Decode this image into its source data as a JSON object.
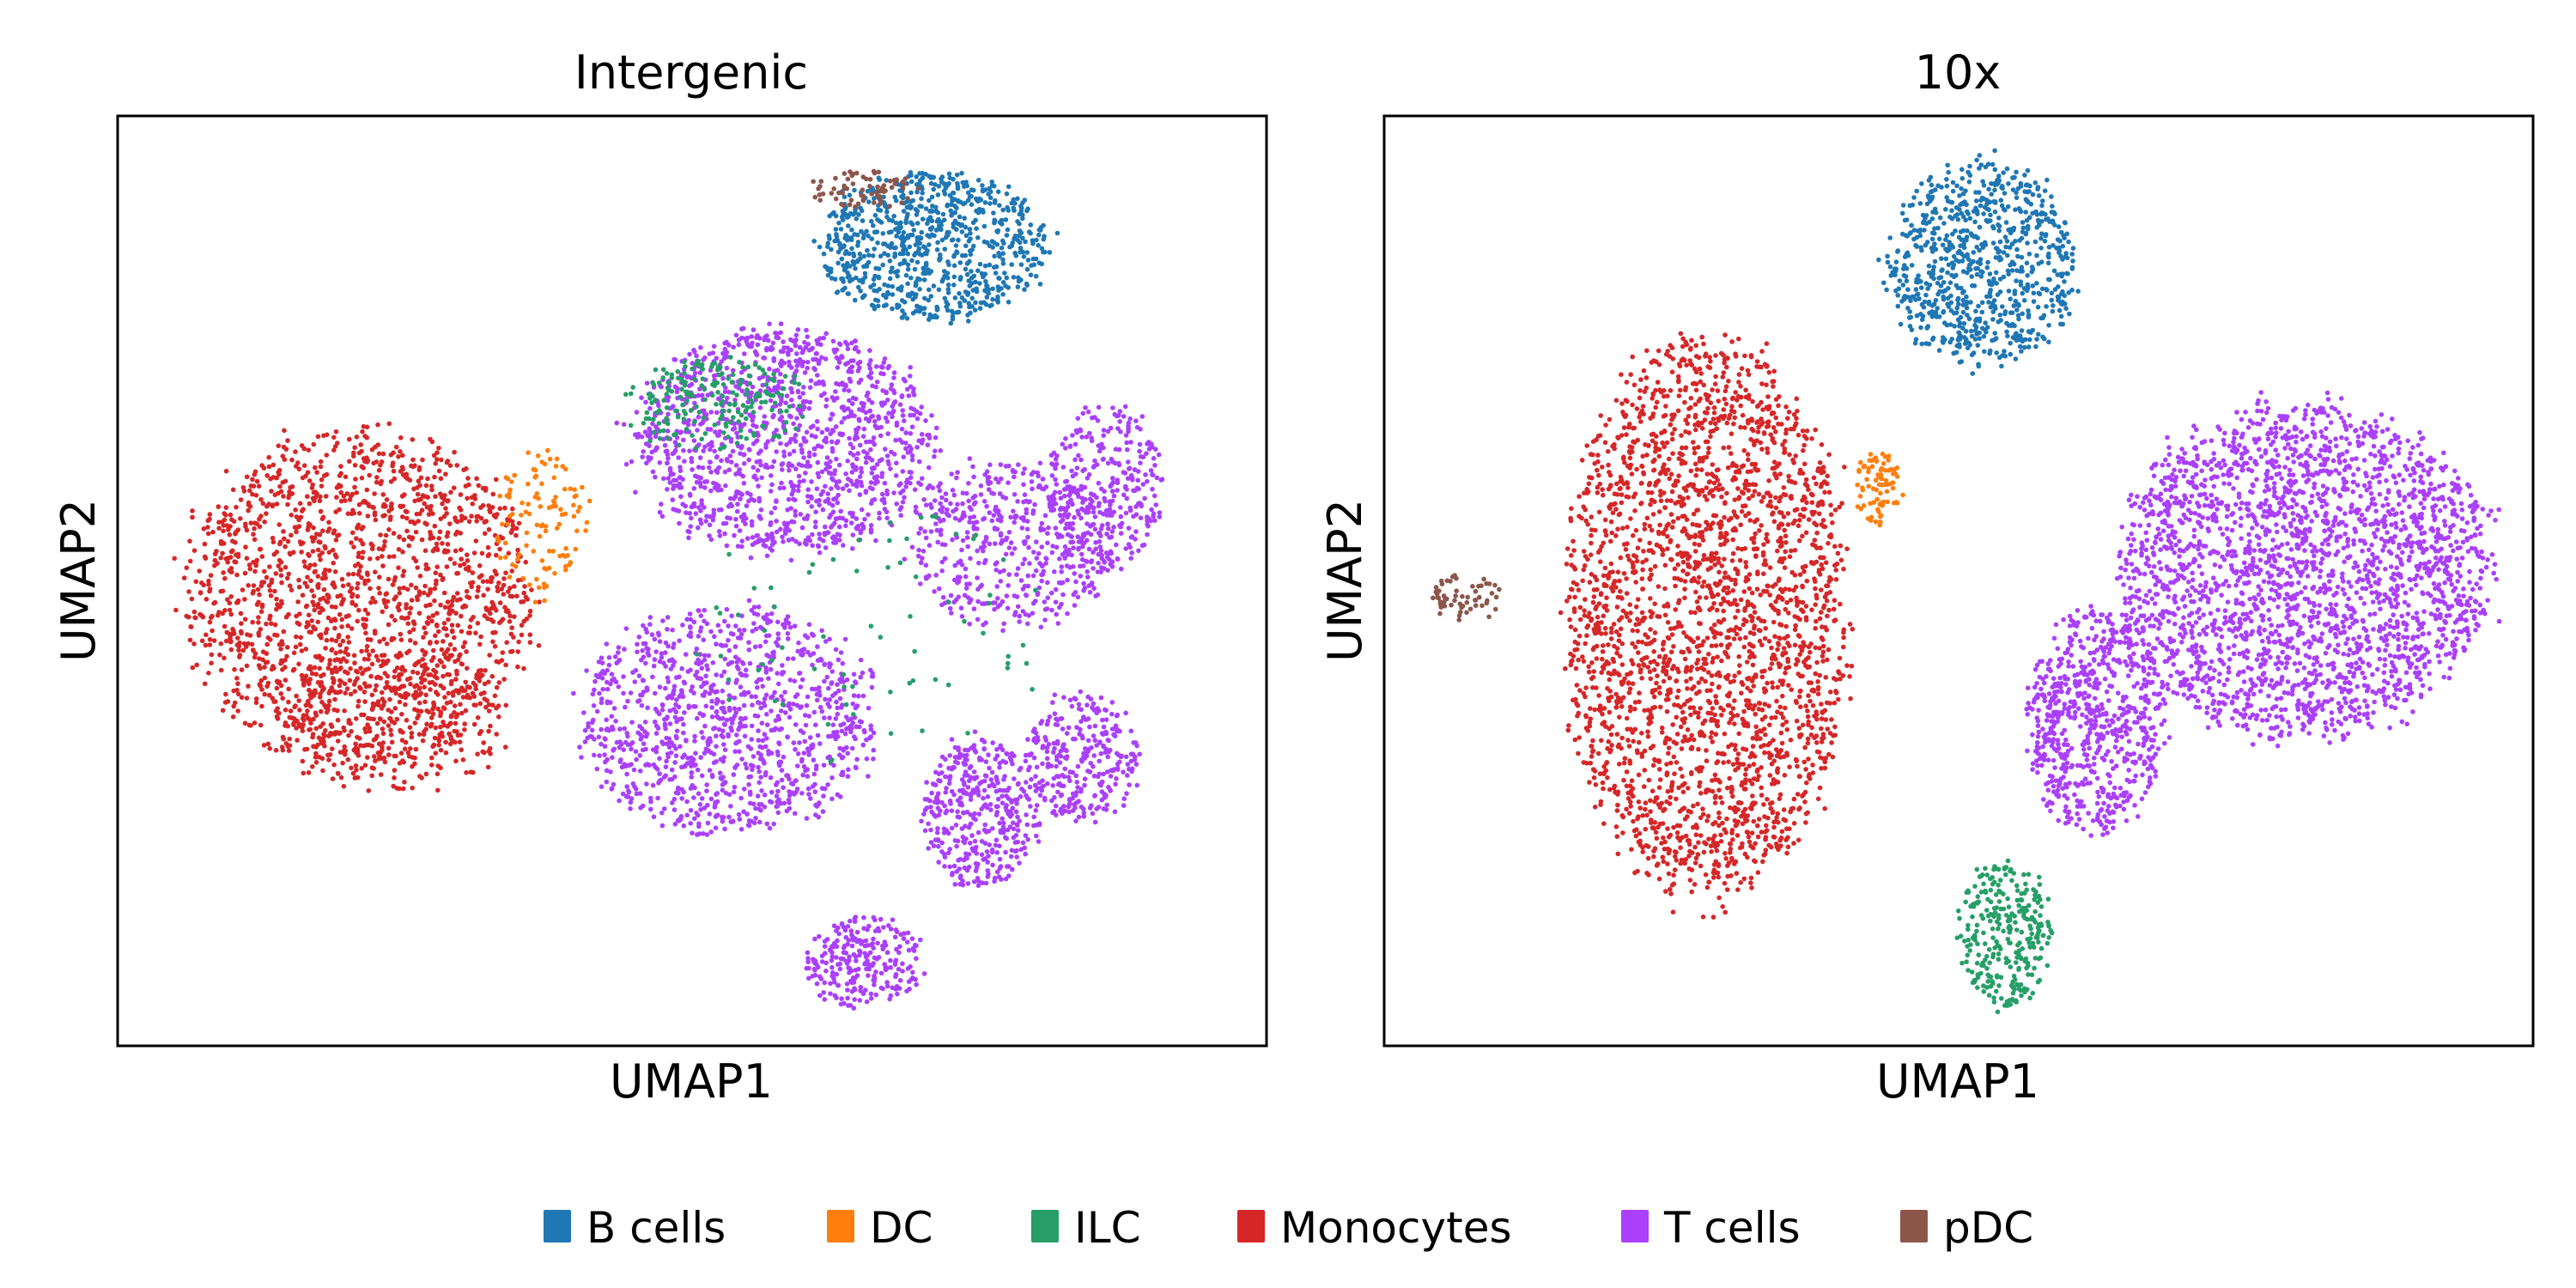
{
  "chart_data": [
    {
      "type": "scatter",
      "title": "Intergenic",
      "xlabel": "UMAP1",
      "ylabel": "UMAP2",
      "ticks": "none",
      "xlim": [
        0,
        100
      ],
      "ylim": [
        0,
        100
      ],
      "clusters": [
        {
          "category": "Monocytes",
          "cx": 21,
          "cy": 48,
          "rx": 15,
          "ry": 18,
          "n": 1700
        },
        {
          "category": "Monocytes",
          "cx": 24,
          "cy": 35,
          "rx": 10,
          "ry": 8,
          "n": 250
        },
        {
          "category": "DC",
          "cx": 37,
          "cy": 56,
          "rx": 4,
          "ry": 8,
          "n": 110
        },
        {
          "category": "B cells",
          "cx": 71,
          "cy": 86,
          "rx": 10,
          "ry": 8,
          "n": 800
        },
        {
          "category": "pDC",
          "cx": 65,
          "cy": 92,
          "rx": 5,
          "ry": 2,
          "n": 70
        },
        {
          "category": "T cells",
          "cx": 58,
          "cy": 65,
          "rx": 13,
          "ry": 12,
          "n": 1300
        },
        {
          "category": "ILC",
          "cx": 52,
          "cy": 69,
          "rx": 8,
          "ry": 5,
          "n": 200
        },
        {
          "category": "T cells",
          "cx": 78,
          "cy": 54,
          "rx": 9,
          "ry": 9,
          "n": 500
        },
        {
          "category": "T cells",
          "cx": 86,
          "cy": 60,
          "rx": 5,
          "ry": 9,
          "n": 300
        },
        {
          "category": "T cells",
          "cx": 53,
          "cy": 35,
          "rx": 13,
          "ry": 12,
          "n": 1100
        },
        {
          "category": "T cells",
          "cx": 75,
          "cy": 25,
          "rx": 5,
          "ry": 8,
          "n": 400
        },
        {
          "category": "T cells",
          "cx": 84,
          "cy": 31,
          "rx": 5,
          "ry": 7,
          "n": 300
        },
        {
          "category": "T cells",
          "cx": 65,
          "cy": 9,
          "rx": 5,
          "ry": 5,
          "n": 250
        },
        {
          "category": "ILC",
          "cx": 66,
          "cy": 45,
          "rx": 15,
          "ry": 15,
          "n": 70
        }
      ]
    },
    {
      "type": "scatter",
      "title": "10x",
      "xlabel": "UMAP1",
      "ylabel": "UMAP2",
      "ticks": "none",
      "xlim": [
        0,
        100
      ],
      "ylim": [
        0,
        100
      ],
      "clusters": [
        {
          "category": "B cells",
          "cx": 52,
          "cy": 84,
          "rx": 8,
          "ry": 11,
          "n": 800
        },
        {
          "category": "Monocytes",
          "cx": 28,
          "cy": 46,
          "rx": 12,
          "ry": 30,
          "n": 2600
        },
        {
          "category": "DC",
          "cx": 43,
          "cy": 60,
          "rx": 2,
          "ry": 4,
          "n": 80
        },
        {
          "category": "pDC",
          "cx": 7,
          "cy": 48,
          "rx": 3,
          "ry": 3,
          "n": 60
        },
        {
          "category": "T cells",
          "cx": 80,
          "cy": 51,
          "rx": 16,
          "ry": 18,
          "n": 2500
        },
        {
          "category": "T cells",
          "cx": 62,
          "cy": 35,
          "rx": 6,
          "ry": 12,
          "n": 700
        },
        {
          "category": "ILC",
          "cx": 54,
          "cy": 12,
          "rx": 4,
          "ry": 8,
          "n": 300
        }
      ]
    }
  ],
  "legend": {
    "placement": "bottom-center",
    "items": [
      {
        "label": "B cells",
        "color": "#1f77b4"
      },
      {
        "label": "DC",
        "color": "#ff7f0e"
      },
      {
        "label": "ILC",
        "color": "#279e68"
      },
      {
        "label": "Monocytes",
        "color": "#d62728"
      },
      {
        "label": "T cells",
        "color": "#aa40fc"
      },
      {
        "label": "pDC",
        "color": "#8c564b"
      }
    ]
  }
}
